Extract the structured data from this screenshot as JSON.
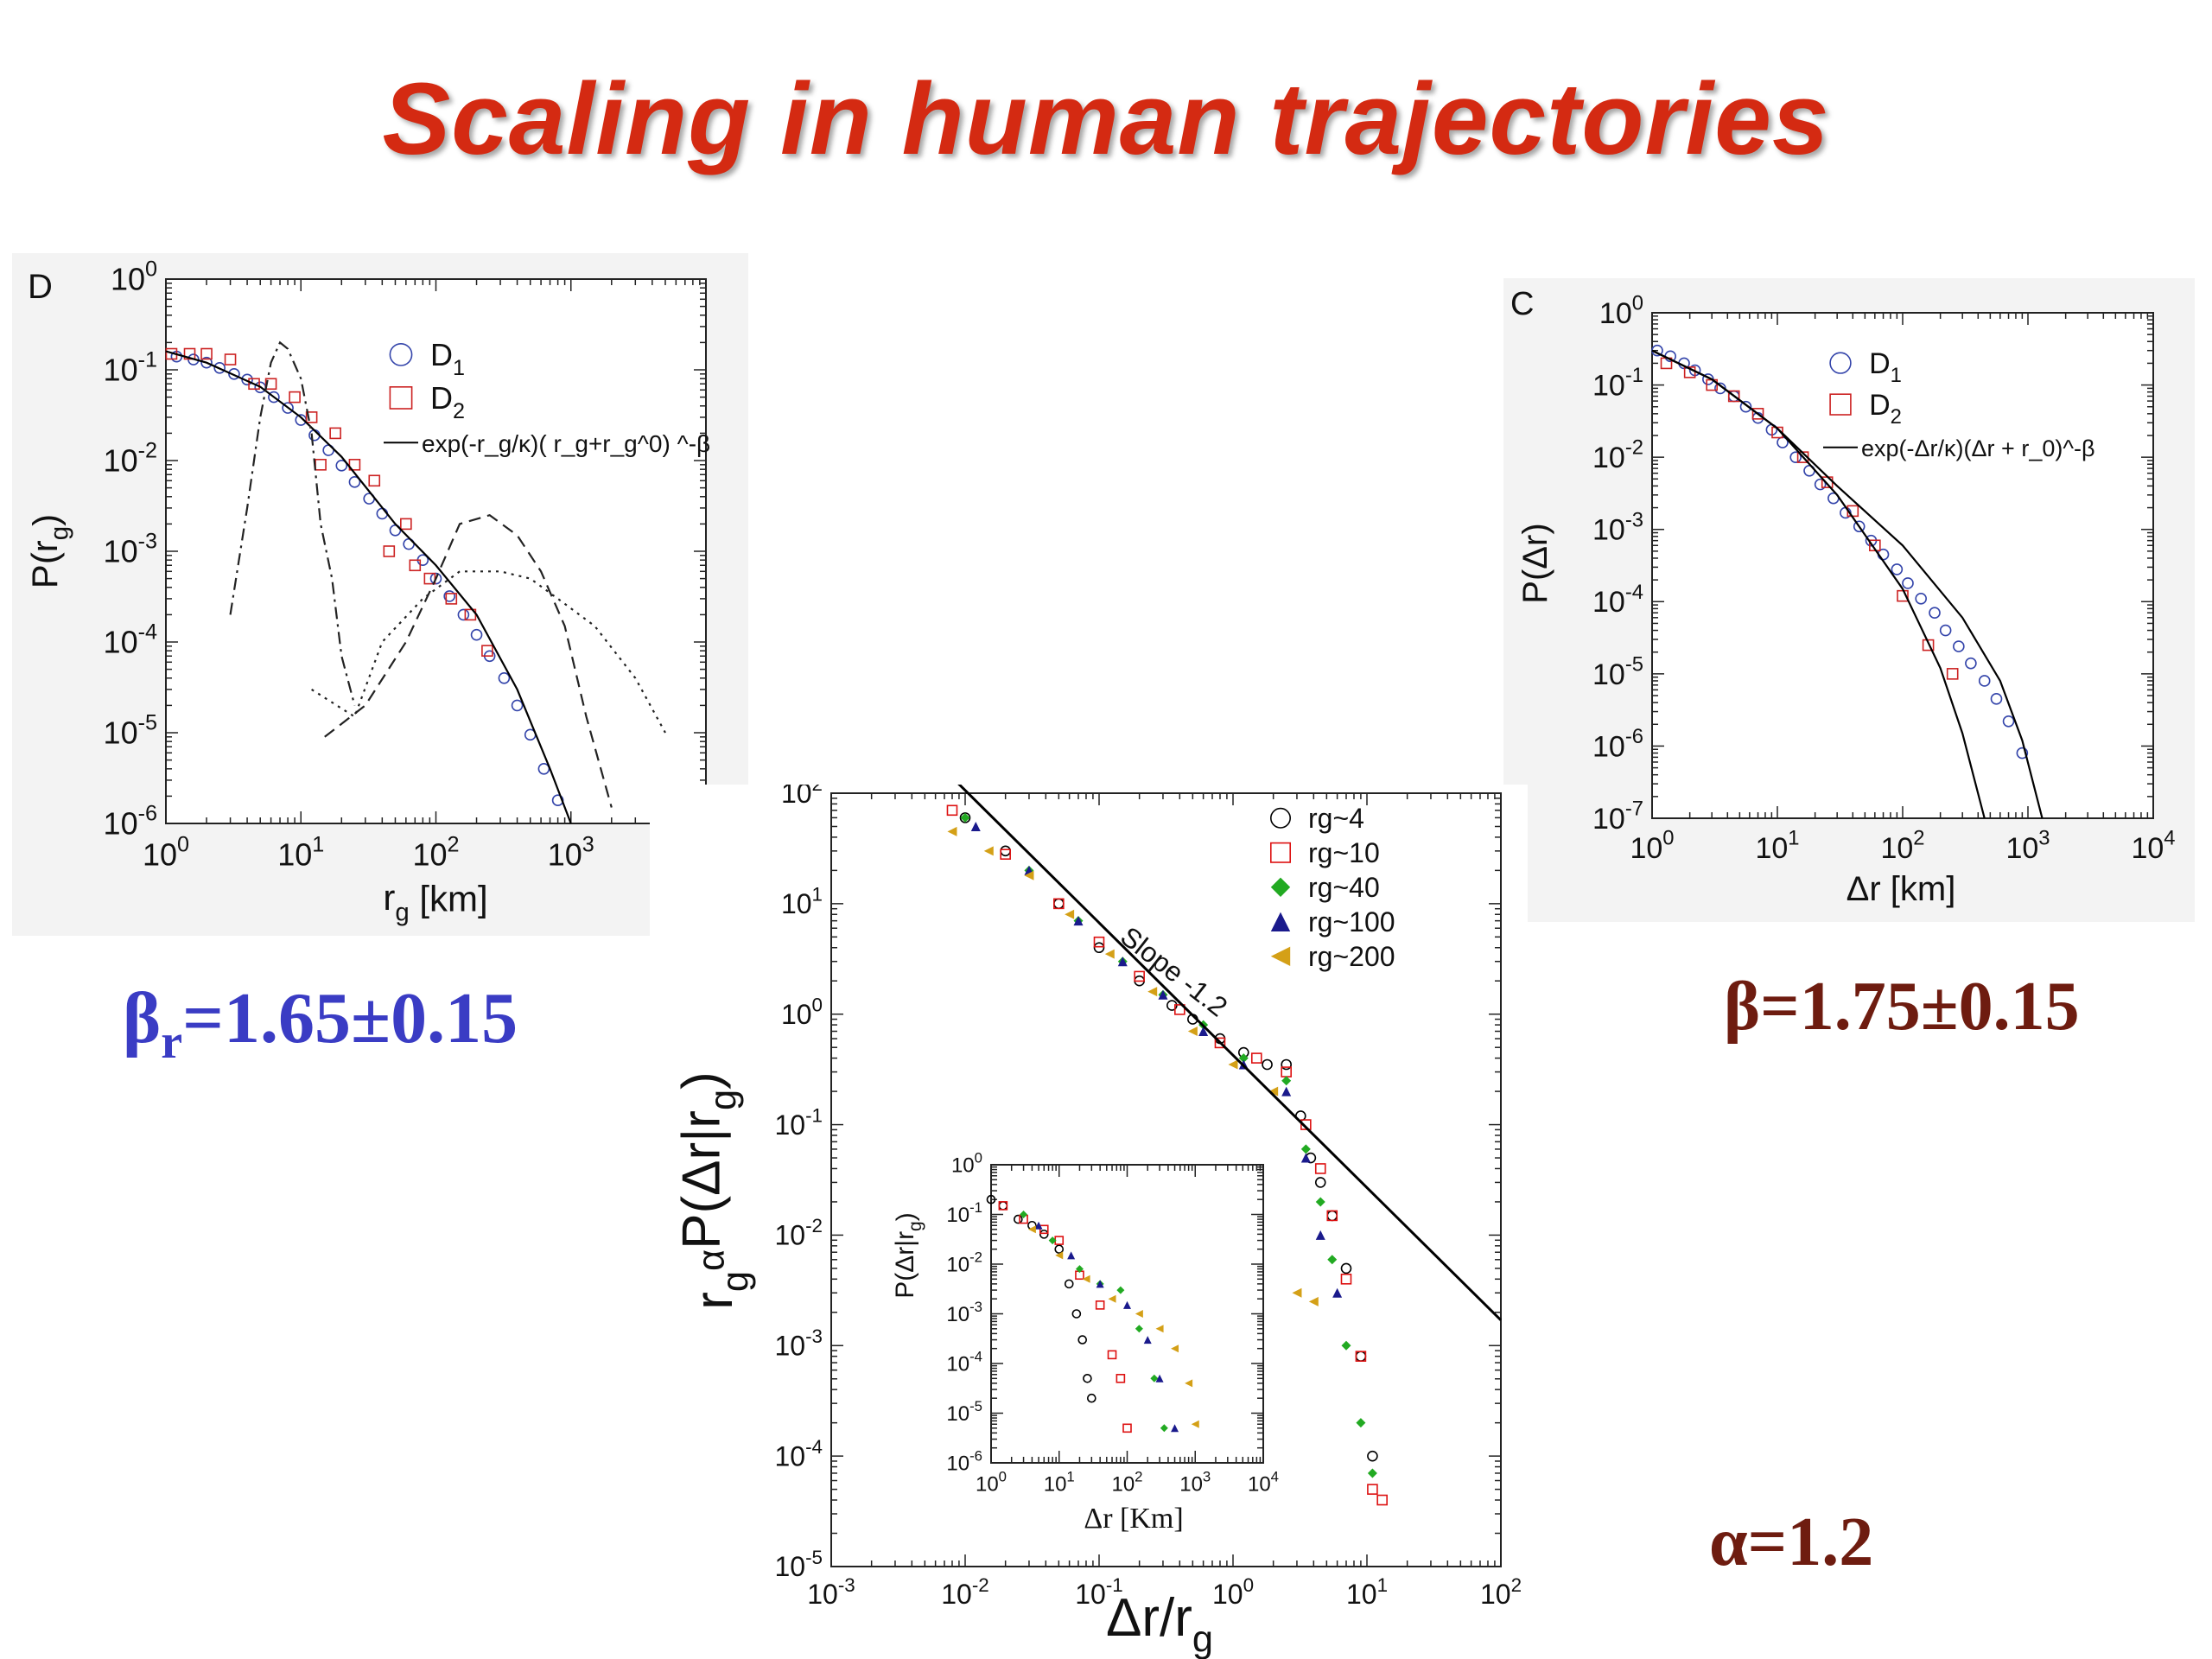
{
  "slide": {
    "title": "Scaling in  human trajectories",
    "annotation_left": {
      "symbol": "β",
      "sub": "r",
      "text": "=1.65±0.15",
      "color": "#3a3cc4"
    },
    "annotation_right": "β=1.75±0.15",
    "annotation_alpha": "α=1.2",
    "title_color": "#d42a12"
  },
  "chart_data": [
    {
      "panel_letter": "D",
      "type": "scatter",
      "xscale": "log",
      "yscale": "log",
      "xlim": [
        1,
        10000
      ],
      "ylim": [
        1e-06,
        1
      ],
      "xlabel": "r_g [km]",
      "ylabel": "P(r_g)",
      "xticks": [
        {
          "base": "10",
          "exp": "0"
        },
        {
          "base": "10",
          "exp": "1"
        },
        {
          "base": "10",
          "exp": "2"
        },
        {
          "base": "10",
          "exp": "3"
        }
      ],
      "yticks": [
        {
          "base": "10",
          "exp": "0"
        },
        {
          "base": "10",
          "exp": "-1"
        },
        {
          "base": "10",
          "exp": "-2"
        },
        {
          "base": "10",
          "exp": "-3"
        },
        {
          "base": "10",
          "exp": "-4"
        },
        {
          "base": "10",
          "exp": "-5"
        },
        {
          "base": "10",
          "exp": "-6"
        }
      ],
      "legend": {
        "position": "top-right",
        "entries": [
          {
            "label": "D1",
            "marker": "circle",
            "color": "#3344aa"
          },
          {
            "label": "D2",
            "marker": "square",
            "color": "#cc2222"
          },
          {
            "label": "exp(-r_g/κ)( r_g+r_g^0) ^-β",
            "marker": "line",
            "color": "#000000"
          }
        ]
      },
      "series": [
        {
          "name": "D1",
          "marker": "circle",
          "color": "#3344aa",
          "x": [
            1.2,
            1.6,
            2,
            2.5,
            3.2,
            4,
            5,
            6.3,
            8,
            10,
            12.6,
            16,
            20,
            25,
            32,
            40,
            50,
            63,
            80,
            100,
            126,
            160,
            200,
            250,
            320,
            400,
            500,
            630,
            800
          ],
          "y": [
            0.14,
            0.13,
            0.12,
            0.105,
            0.09,
            0.078,
            0.064,
            0.05,
            0.038,
            0.028,
            0.019,
            0.013,
            0.0088,
            0.0058,
            0.0038,
            0.0026,
            0.0017,
            0.0012,
            0.0008,
            0.0005,
            0.00032,
            0.0002,
            0.00012,
            7e-05,
            4e-05,
            2e-05,
            9.5e-06,
            4e-06,
            1.8e-06
          ]
        },
        {
          "name": "D2",
          "marker": "square",
          "color": "#cc2222",
          "x": [
            1.1,
            1.5,
            2,
            3,
            4.5,
            6,
            9,
            12,
            14,
            18,
            25,
            35,
            45,
            60,
            70,
            90,
            130,
            180,
            240
          ],
          "y": [
            0.15,
            0.15,
            0.15,
            0.13,
            0.07,
            0.07,
            0.05,
            0.03,
            0.009,
            0.02,
            0.009,
            0.006,
            0.001,
            0.002,
            0.0007,
            0.0005,
            0.0003,
            0.0002,
            8e-05
          ]
        },
        {
          "name": "fit",
          "style": "solid",
          "color": "#000000",
          "x": [
            1,
            2,
            5,
            10,
            20,
            50,
            100,
            200,
            400,
            700,
            1000
          ],
          "y": [
            0.16,
            0.12,
            0.065,
            0.03,
            0.011,
            0.002,
            0.0007,
            0.0002,
            3e-05,
            4e-06,
            1e-06
          ]
        },
        {
          "name": "dash-dot",
          "style": "dashdot",
          "color": "#222222",
          "x": [
            3,
            4,
            5,
            6,
            7,
            8,
            10,
            12,
            14,
            17,
            20,
            25
          ],
          "y": [
            0.0002,
            0.003,
            0.03,
            0.12,
            0.2,
            0.17,
            0.08,
            0.02,
            0.002,
            0.0005,
            7e-05,
            2e-05
          ]
        },
        {
          "name": "dashed",
          "style": "dashed",
          "color": "#222222",
          "x": [
            15,
            30,
            60,
            100,
            150,
            250,
            400,
            600,
            900,
            1300,
            2000
          ],
          "y": [
            9e-06,
            2e-05,
            0.0001,
            0.0005,
            0.002,
            0.0025,
            0.0015,
            0.0006,
            0.00015,
            1.5e-05,
            1.5e-06
          ]
        },
        {
          "name": "dotted",
          "style": "dotted",
          "color": "#222222",
          "x": [
            12,
            25,
            40,
            80,
            150,
            300,
            500,
            800,
            1500,
            3000,
            5000
          ],
          "y": [
            3e-05,
            1.5e-05,
            0.0001,
            0.0003,
            0.0006,
            0.0006,
            0.0005,
            0.0003,
            0.00015,
            4e-05,
            1e-05
          ]
        }
      ]
    },
    {
      "panel_letter": "C",
      "type": "scatter",
      "xscale": "log",
      "yscale": "log",
      "xlim": [
        1,
        10000
      ],
      "ylim": [
        1e-07,
        1
      ],
      "xlabel": "Δr [km]",
      "ylabel": "P(Δr)",
      "xticks": [
        {
          "base": "10",
          "exp": "0"
        },
        {
          "base": "10",
          "exp": "1"
        },
        {
          "base": "10",
          "exp": "2"
        },
        {
          "base": "10",
          "exp": "3"
        },
        {
          "base": "10",
          "exp": "4"
        }
      ],
      "yticks": [
        {
          "base": "10",
          "exp": "0"
        },
        {
          "base": "10",
          "exp": "-1"
        },
        {
          "base": "10",
          "exp": "-2"
        },
        {
          "base": "10",
          "exp": "-3"
        },
        {
          "base": "10",
          "exp": "-4"
        },
        {
          "base": "10",
          "exp": "-5"
        },
        {
          "base": "10",
          "exp": "-6"
        },
        {
          "base": "10",
          "exp": "-7"
        }
      ],
      "legend": {
        "position": "top-right",
        "entries": [
          {
            "label": "D1",
            "marker": "circle",
            "color": "#3344aa"
          },
          {
            "label": "D2",
            "marker": "square",
            "color": "#cc2222"
          },
          {
            "label": "exp(-Δr/κ)(Δr + r_0)^-β",
            "marker": "line",
            "color": "#000000"
          }
        ]
      },
      "series": [
        {
          "name": "D1",
          "marker": "circle",
          "color": "#3344aa",
          "x": [
            1.1,
            1.4,
            1.8,
            2.2,
            2.8,
            3.5,
            4.5,
            5.6,
            7,
            9,
            11,
            14,
            18,
            22,
            28,
            35,
            45,
            56,
            70,
            90,
            110,
            140,
            180,
            220,
            280,
            350,
            450,
            560,
            700,
            900
          ],
          "y": [
            0.3,
            0.25,
            0.2,
            0.16,
            0.12,
            0.09,
            0.07,
            0.05,
            0.035,
            0.024,
            0.016,
            0.01,
            0.0065,
            0.0042,
            0.0027,
            0.0017,
            0.0011,
            0.0007,
            0.00045,
            0.00028,
            0.00018,
            0.00011,
            7e-05,
            4e-05,
            2.4e-05,
            1.4e-05,
            8e-06,
            4.5e-06,
            2.2e-06,
            8e-07
          ]
        },
        {
          "name": "D2",
          "marker": "square",
          "color": "#cc2222",
          "x": [
            1.3,
            2,
            3,
            4.5,
            7,
            10,
            16,
            25,
            40,
            60,
            100,
            160,
            250
          ],
          "y": [
            0.2,
            0.15,
            0.1,
            0.07,
            0.04,
            0.022,
            0.01,
            0.0045,
            0.0018,
            0.0006,
            0.00012,
            2.5e-05,
            1e-05
          ]
        },
        {
          "name": "fit-1",
          "style": "solid",
          "color": "#000000",
          "x": [
            1,
            3,
            10,
            30,
            100,
            200,
            300,
            450
          ],
          "y": [
            0.3,
            0.12,
            0.025,
            0.003,
            0.00015,
            1.2e-05,
            1.5e-06,
            1e-07
          ]
        },
        {
          "name": "fit-2",
          "style": "solid",
          "color": "#000000",
          "x": [
            1,
            3,
            10,
            30,
            100,
            300,
            600,
            900,
            1300
          ],
          "y": [
            0.3,
            0.12,
            0.025,
            0.004,
            0.0006,
            6e-05,
            8e-06,
            1.2e-06,
            1e-07
          ]
        }
      ]
    },
    {
      "type": "scatter",
      "xscale": "log",
      "yscale": "log",
      "xlim": [
        0.001,
        100
      ],
      "ylim": [
        1e-05,
        100
      ],
      "xlabel": "Δr/r_g",
      "ylabel": "r_g^α P(Δr|r_g)",
      "annotation": "Slope -1.2",
      "xticks": [
        {
          "base": "10",
          "exp": "-3"
        },
        {
          "base": "10",
          "exp": "-2"
        },
        {
          "base": "10",
          "exp": "-1"
        },
        {
          "base": "10",
          "exp": "0"
        },
        {
          "base": "10",
          "exp": "1"
        },
        {
          "base": "10",
          "exp": "2"
        }
      ],
      "yticks": [
        {
          "base": "10",
          "exp": "2"
        },
        {
          "base": "10",
          "exp": "1"
        },
        {
          "base": "10",
          "exp": "0"
        },
        {
          "base": "10",
          "exp": "-1"
        },
        {
          "base": "10",
          "exp": "-2"
        },
        {
          "base": "10",
          "exp": "-3"
        },
        {
          "base": "10",
          "exp": "-4"
        },
        {
          "base": "10",
          "exp": "-5"
        }
      ],
      "legend": {
        "position": "top-right",
        "entries": [
          {
            "label": "rg~4",
            "marker": "circle",
            "color": "#000000"
          },
          {
            "label": "rg~10",
            "marker": "square",
            "color": "#dd1111"
          },
          {
            "label": "rg~40",
            "marker": "diamond",
            "color": "#22aa22"
          },
          {
            "label": "rg~100",
            "marker": "triangle",
            "color": "#1a1a8c"
          },
          {
            "label": "rg~200",
            "marker": "triangle-left",
            "color": "#d4a017"
          }
        ]
      },
      "series": [
        {
          "name": "rg~4",
          "marker": "circle",
          "color": "#000000",
          "x": [
            0.01,
            0.02,
            0.05,
            0.1,
            0.2,
            0.35,
            0.5,
            0.8,
            1.2,
            1.8,
            2.5,
            3.2,
            3.8,
            4.5,
            5.5,
            7,
            9,
            11
          ],
          "y": [
            60,
            30,
            10,
            4,
            2,
            1.2,
            0.9,
            0.6,
            0.45,
            0.35,
            0.35,
            0.12,
            0.05,
            0.03,
            0.015,
            0.005,
            0.0008,
            0.0001
          ]
        },
        {
          "name": "rg~10",
          "marker": "square",
          "color": "#dd1111",
          "x": [
            0.008,
            0.02,
            0.05,
            0.1,
            0.2,
            0.4,
            0.8,
            1.5,
            2.5,
            3.5,
            4.5,
            5.5,
            7,
            9,
            11,
            13
          ],
          "y": [
            70,
            28,
            10,
            4.5,
            2.2,
            1.1,
            0.55,
            0.4,
            0.3,
            0.1,
            0.04,
            0.015,
            0.004,
            0.0008,
            5e-05,
            4e-05
          ]
        },
        {
          "name": "rg~40",
          "marker": "diamond",
          "color": "#22aa22",
          "x": [
            0.01,
            0.03,
            0.07,
            0.15,
            0.3,
            0.6,
            1.2,
            2.5,
            3.5,
            4.5,
            5.5,
            7,
            9,
            11
          ],
          "y": [
            60,
            20,
            7,
            3,
            1.5,
            0.8,
            0.4,
            0.25,
            0.06,
            0.02,
            0.006,
            0.001,
            0.0002,
            7e-05
          ]
        },
        {
          "name": "rg~100",
          "marker": "triangle",
          "color": "#1a1a8c",
          "x": [
            0.012,
            0.03,
            0.07,
            0.15,
            0.3,
            0.6,
            1.2,
            2.5,
            3.5,
            4.5,
            6
          ],
          "y": [
            50,
            20,
            7,
            3,
            1.5,
            0.7,
            0.35,
            0.2,
            0.05,
            0.01,
            0.003
          ]
        },
        {
          "name": "rg~200",
          "marker": "triangle-left",
          "color": "#d4a017",
          "x": [
            0.008,
            0.015,
            0.03,
            0.06,
            0.12,
            0.25,
            0.5,
            1,
            2,
            3,
            4
          ],
          "y": [
            45,
            30,
            18,
            8,
            3.5,
            1.6,
            0.7,
            0.35,
            0.2,
            0.003,
            0.0025
          ]
        },
        {
          "name": "slope-line",
          "style": "solid",
          "color": "#000000",
          "x": [
            0.0075,
            100
          ],
          "y": [
            150,
            0.0017
          ]
        }
      ],
      "inset": {
        "type": "scatter",
        "xscale": "log",
        "yscale": "log",
        "xlim": [
          1,
          10000
        ],
        "ylim": [
          1e-06,
          1
        ],
        "xlabel": "Δr [Km]",
        "ylabel": "P(Δr|r_g)",
        "xticks": [
          {
            "base": "10",
            "exp": "0"
          },
          {
            "base": "10",
            "exp": "1"
          },
          {
            "base": "10",
            "exp": "2"
          },
          {
            "base": "10",
            "exp": "3"
          },
          {
            "base": "10",
            "exp": "4"
          }
        ],
        "yticks": [
          {
            "base": "10",
            "exp": "0"
          },
          {
            "base": "10",
            "exp": "-1"
          },
          {
            "base": "10",
            "exp": "-2"
          },
          {
            "base": "10",
            "exp": "-3"
          },
          {
            "base": "10",
            "exp": "-4"
          },
          {
            "base": "10",
            "exp": "-5"
          },
          {
            "base": "10",
            "exp": "-6"
          }
        ],
        "series": [
          {
            "name": "rg~4",
            "marker": "circle",
            "color": "#000000",
            "x": [
              1,
              1.5,
              2.5,
              4,
              6,
              10,
              14,
              18,
              22,
              26,
              30
            ],
            "y": [
              0.2,
              0.15,
              0.08,
              0.06,
              0.04,
              0.02,
              0.004,
              0.001,
              0.0003,
              5e-05,
              2e-05
            ]
          },
          {
            "name": "rg~10",
            "marker": "square",
            "color": "#dd1111",
            "x": [
              1.5,
              3,
              6,
              10,
              20,
              40,
              60,
              80,
              100
            ],
            "y": [
              0.15,
              0.08,
              0.05,
              0.03,
              0.006,
              0.0015,
              0.00015,
              5e-05,
              5e-06
            ]
          },
          {
            "name": "rg~40",
            "marker": "diamond",
            "color": "#22aa22",
            "x": [
              3,
              8,
              20,
              40,
              80,
              150,
              250,
              350
            ],
            "y": [
              0.1,
              0.03,
              0.008,
              0.004,
              0.003,
              0.0005,
              5e-05,
              5e-06
            ]
          },
          {
            "name": "rg~100",
            "marker": "triangle",
            "color": "#1a1a8c",
            "x": [
              5,
              15,
              40,
              100,
              200,
              300,
              500
            ],
            "y": [
              0.06,
              0.015,
              0.004,
              0.0015,
              0.0003,
              5e-05,
              5e-06
            ]
          },
          {
            "name": "rg~200",
            "marker": "triangle-left",
            "color": "#d4a017",
            "x": [
              4,
              10,
              25,
              60,
              150,
              300,
              500,
              800,
              1000
            ],
            "y": [
              0.05,
              0.015,
              0.005,
              0.002,
              0.001,
              0.0005,
              0.0002,
              4e-05,
              6e-06
            ]
          }
        ]
      }
    }
  ]
}
